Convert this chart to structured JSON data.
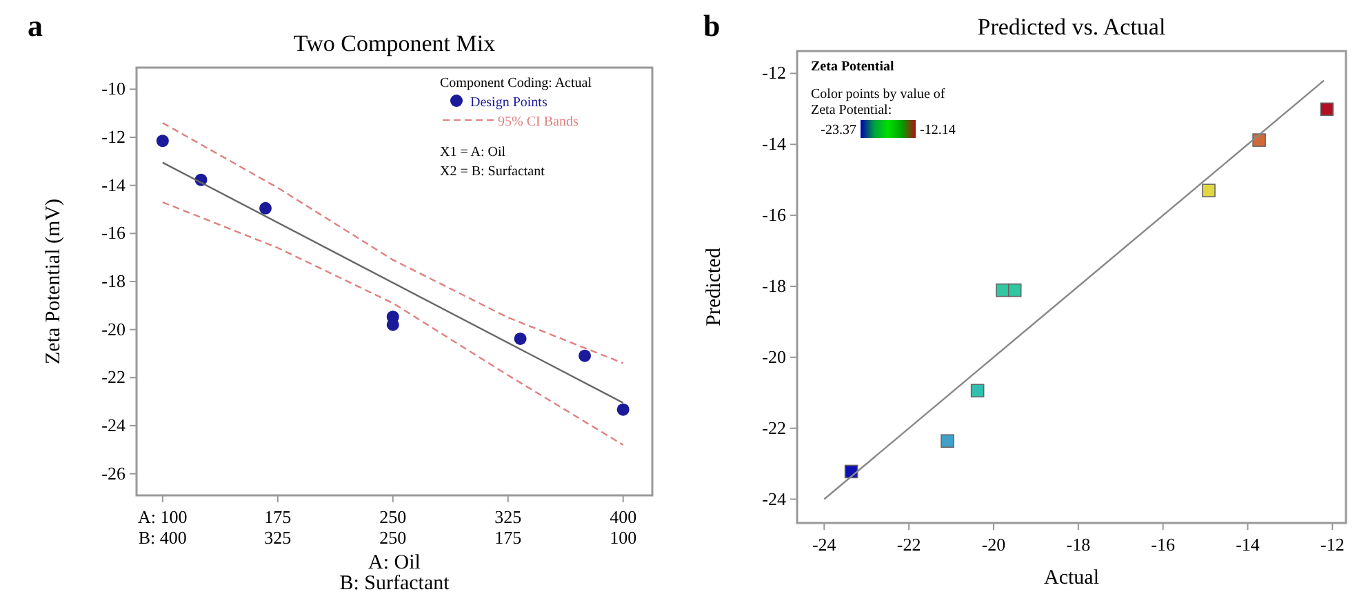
{
  "chart_data": [
    {
      "type": "scatter",
      "title": "Two Component Mix",
      "xlabel": "A: Oil",
      "x2label": "B: Surfactant",
      "ylabel": "Zeta Potential (mV)",
      "xlim": [
        83,
        419
      ],
      "x2lim": [
        417,
        81
      ],
      "ylim": [
        -26.9,
        -9.1
      ],
      "xticks": [
        {
          "value": 100,
          "label": "A: 100"
        },
        175,
        250,
        325,
        400
      ],
      "x2ticks": [
        {
          "value": 400,
          "label": "B: 400"
        },
        325,
        250,
        175,
        100
      ],
      "yticks": [
        -26,
        -24,
        -22,
        -20,
        -18,
        -16,
        -14,
        -12,
        -10
      ],
      "legend": "top right",
      "legend_title": "Component Coding: Actual",
      "annotations": [
        "a",
        "X1 = A: Oil",
        "X2 = B: Surfactant"
      ],
      "series": [
        {
          "name": "Design Points",
          "marker": "circle",
          "color": "#1a1a9a",
          "x": [
            100,
            125,
            167,
            250,
            250,
            333,
            375,
            400
          ],
          "values": [
            -12.15,
            -13.77,
            -14.95,
            -19.47,
            -19.8,
            -20.38,
            -21.09,
            -23.33
          ]
        },
        {
          "type": "line",
          "color": "#666666",
          "line_style": "solid",
          "x": [
            100,
            400
          ],
          "values": [
            -13.05,
            -23.05
          ]
        },
        {
          "name": "95% CI Bands",
          "type": "line",
          "color": "#e08080",
          "line_style": "dashed",
          "x": [
            100,
            175,
            250,
            325,
            400
          ],
          "values": [
            -11.4,
            -14.1,
            -17.1,
            -19.5,
            -21.4
          ]
        },
        {
          "type": "line",
          "color": "#e08080",
          "line_style": "dashed",
          "x": [
            100,
            175,
            250,
            325,
            400
          ],
          "values": [
            -14.7,
            -16.6,
            -18.9,
            -21.9,
            -24.8
          ]
        }
      ]
    },
    {
      "type": "scatter",
      "title": "Predicted vs. Actual",
      "xlabel": "Actual",
      "ylabel": "Predicted",
      "xlim": [
        -24.64,
        -11.68
      ],
      "ylim": [
        -24.67,
        -11.37
      ],
      "xticks": [
        -24,
        -22,
        -20,
        -18,
        -16,
        -14,
        -12
      ],
      "yticks": [
        -24,
        -22,
        -20,
        -18,
        -16,
        -14,
        -12
      ],
      "annotations": [
        "b",
        "Zeta Potential",
        "Color points by value of Zeta Potential:",
        "-23.37",
        "-12.14"
      ],
      "series": [
        {
          "marker": "square",
          "x": [
            -23.36,
            -21.09,
            -20.38,
            -19.79,
            -19.5,
            -14.92,
            -13.73,
            -12.13
          ],
          "values": [
            -23.22,
            -22.36,
            -20.94,
            -18.11,
            -18.11,
            -15.3,
            -13.88,
            -13.01
          ],
          "colors": [
            "#1010b0",
            "#40a0c8",
            "#30c0b0",
            "#30c8a0",
            "#30c8a0",
            "#e0d840",
            "#d06a38",
            "#b01020"
          ]
        },
        {
          "type": "line",
          "color": "#888888",
          "line_style": "solid",
          "x": [
            -24,
            -12.2
          ],
          "values": [
            -24,
            -12.2
          ]
        }
      ]
    }
  ]
}
